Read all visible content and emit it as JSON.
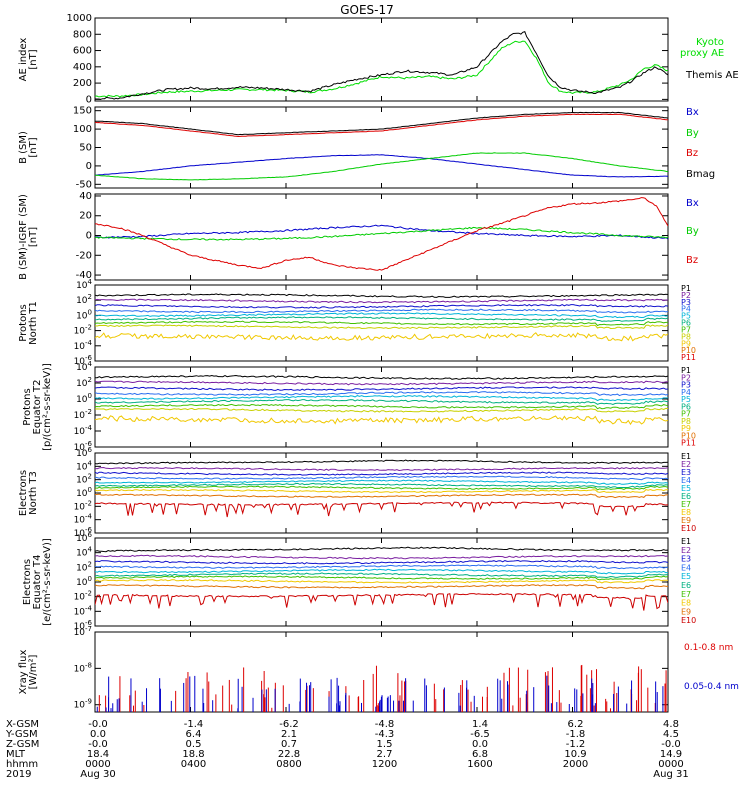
{
  "title": "GOES-17",
  "time_axis": {
    "x_range_hours": [
      0,
      24
    ],
    "tick_hours": [
      0,
      4,
      8,
      12,
      16,
      20,
      24
    ],
    "rows": [
      {
        "label": "X-GSM",
        "values": [
          "-0.0",
          "-1.4",
          "-6.2",
          "-4.8",
          "1.4",
          "6.2",
          "4.8"
        ]
      },
      {
        "label": "Y-GSM",
        "values": [
          "0.0",
          "6.4",
          "2.1",
          "-4.3",
          "-6.5",
          "-1.8",
          "4.5"
        ]
      },
      {
        "label": "Z-GSM",
        "values": [
          "-0.0",
          "0.5",
          "0.7",
          "1.5",
          "0.0",
          "-1.2",
          "-0.0"
        ]
      },
      {
        "label": "MLT",
        "values": [
          "18.4",
          "18.8",
          "22.8",
          "2.7",
          "6.8",
          "10.9",
          "14.9"
        ]
      },
      {
        "label": "hhmm",
        "values": [
          "0000",
          "0400",
          "0800",
          "1200",
          "1600",
          "2000",
          "0000"
        ]
      },
      {
        "label": "2019",
        "values": [
          "Aug 30",
          "",
          "",
          "",
          "",
          "",
          "Aug 31"
        ]
      }
    ]
  },
  "colors": {
    "black": "#000000",
    "red": "#dd0000",
    "green": "#00cc00",
    "blue": "#0000cc",
    "ae_proxy": "#00dd00"
  },
  "chart_data": [
    {
      "type": "line",
      "panel": "ae",
      "ylabel": "AE index\n[nT]",
      "ylim": [
        -20,
        1000
      ],
      "yticks": [
        0,
        200,
        400,
        600,
        800,
        1000
      ],
      "series": [
        {
          "name": "Kyoto\nproxy AE",
          "color": "#00dd00",
          "x": [
            0,
            1,
            2,
            3,
            4,
            5,
            6,
            7,
            8,
            9,
            10,
            11,
            12,
            13,
            14,
            15,
            16,
            17,
            17.5,
            18,
            18.5,
            19,
            19.5,
            20,
            21,
            22,
            22.5,
            23,
            23.5,
            24
          ],
          "values": [
            40,
            40,
            60,
            90,
            100,
            110,
            120,
            120,
            110,
            90,
            130,
            200,
            280,
            260,
            280,
            250,
            300,
            620,
            700,
            720,
            500,
            200,
            100,
            80,
            90,
            180,
            250,
            380,
            420,
            350
          ]
        },
        {
          "name": "Themis AE",
          "color": "#000000",
          "x": [
            0,
            1,
            2,
            3,
            4,
            5,
            6,
            7,
            8,
            9,
            10,
            11,
            12,
            13,
            14,
            15,
            16,
            17,
            17.5,
            18,
            18.5,
            19,
            19.5,
            20,
            21,
            22,
            22.5,
            23,
            23.5,
            24
          ],
          "values": [
            10,
            15,
            70,
            120,
            140,
            130,
            150,
            140,
            120,
            100,
            180,
            250,
            300,
            350,
            330,
            300,
            400,
            700,
            800,
            820,
            560,
            280,
            150,
            110,
            80,
            150,
            230,
            330,
            400,
            300
          ]
        }
      ]
    },
    {
      "type": "line",
      "panel": "b_sm",
      "ylabel": "B (SM)\n[nT]",
      "ylim": [
        -60,
        160
      ],
      "yticks": [
        -50,
        0,
        50,
        100,
        150
      ],
      "series": [
        {
          "name": "Bx",
          "color": "#0000cc",
          "x": [
            0,
            2,
            4,
            6,
            8,
            10,
            12,
            14,
            16,
            18,
            20,
            22,
            24
          ],
          "values": [
            -25,
            -15,
            0,
            10,
            20,
            28,
            30,
            20,
            5,
            -10,
            -25,
            -30,
            -28
          ]
        },
        {
          "name": "By",
          "color": "#00cc00",
          "x": [
            0,
            2,
            4,
            6,
            8,
            10,
            12,
            14,
            16,
            18,
            20,
            22,
            24
          ],
          "values": [
            -25,
            -35,
            -38,
            -35,
            -30,
            -15,
            5,
            20,
            35,
            35,
            20,
            0,
            -15
          ]
        },
        {
          "name": "Bz",
          "color": "#dd0000",
          "x": [
            0,
            2,
            4,
            6,
            8,
            10,
            12,
            14,
            16,
            18,
            20,
            22,
            24
          ],
          "values": [
            118,
            110,
            95,
            80,
            85,
            90,
            95,
            110,
            125,
            135,
            140,
            140,
            125
          ]
        },
        {
          "name": "Bmag",
          "color": "#000000",
          "x": [
            0,
            2,
            4,
            6,
            8,
            10,
            12,
            14,
            16,
            18,
            20,
            22,
            24
          ],
          "values": [
            122,
            115,
            100,
            85,
            90,
            95,
            100,
            115,
            130,
            140,
            145,
            145,
            130
          ]
        }
      ]
    },
    {
      "type": "line",
      "panel": "b_igrf",
      "ylabel": "B (SM)-IGRF (SM)\n[nT]",
      "ylim": [
        -45,
        42
      ],
      "yticks": [
        -40,
        -20,
        0,
        20,
        40
      ],
      "series": [
        {
          "name": "Bx",
          "color": "#0000cc",
          "x": [
            0,
            2,
            4,
            6,
            8,
            10,
            12,
            14,
            16,
            18,
            20,
            22,
            24
          ],
          "values": [
            -2,
            -1,
            2,
            3,
            5,
            8,
            10,
            5,
            2,
            0,
            -1,
            0,
            -3
          ]
        },
        {
          "name": "By",
          "color": "#00cc00",
          "x": [
            0,
            2,
            4,
            6,
            8,
            10,
            12,
            14,
            16,
            18,
            20,
            22,
            24
          ],
          "values": [
            -2,
            -3,
            -4,
            -4,
            -3,
            -1,
            2,
            5,
            8,
            6,
            3,
            0,
            -2
          ]
        },
        {
          "name": "Bz",
          "color": "#dd0000",
          "x": [
            0,
            1,
            2,
            3,
            4,
            5,
            6,
            7,
            8,
            9,
            10,
            11,
            12,
            13,
            14,
            15,
            16,
            17,
            18,
            19,
            20,
            21,
            22,
            23,
            23.5,
            24
          ],
          "values": [
            12,
            8,
            0,
            -10,
            -20,
            -25,
            -30,
            -33,
            -25,
            -22,
            -30,
            -33,
            -35,
            -25,
            -15,
            -5,
            5,
            12,
            20,
            28,
            32,
            33,
            35,
            38,
            30,
            10
          ]
        }
      ]
    },
    {
      "type": "line",
      "panel": "protons_t1",
      "ylabel": "Protons\nNorth T1",
      "log_y": true,
      "ylim_log10": [
        -6,
        4
      ],
      "yticks_log10": [
        -6,
        -4,
        -2,
        0,
        2,
        4
      ],
      "series": [
        {
          "name": "P1",
          "color": "#000000",
          "level_log10": 2.6
        },
        {
          "name": "P2",
          "color": "#7a1fa0",
          "level_log10": 1.9
        },
        {
          "name": "P3",
          "color": "#1010cc",
          "level_log10": 1.2
        },
        {
          "name": "P4",
          "color": "#2a6ef0",
          "level_log10": 0.6
        },
        {
          "name": "P5",
          "color": "#00b4d8",
          "level_log10": 0.1
        },
        {
          "name": "P6",
          "color": "#00b080",
          "level_log10": -0.4
        },
        {
          "name": "P7",
          "color": "#40c000",
          "level_log10": -1.0
        },
        {
          "name": "P8",
          "color": "#c8d000",
          "level_log10": -1.5
        },
        {
          "name": "P9",
          "color": "#f0c800",
          "level_log10": -2.8
        },
        {
          "name": "P10",
          "color": "#e07000",
          "level_log10": null
        },
        {
          "name": "P11",
          "color": "#dd0000",
          "level_log10": null
        }
      ]
    },
    {
      "type": "line",
      "panel": "protons_t2",
      "ylabel": "Protons\nEquator T2\n[p/(cm²-s-sr-keV)]",
      "log_y": true,
      "ylim_log10": [
        -6,
        4
      ],
      "yticks_log10": [
        -6,
        -4,
        -2,
        0,
        2,
        4
      ],
      "series": [
        {
          "name": "P1",
          "color": "#000000",
          "level_log10": 2.7
        },
        {
          "name": "P2",
          "color": "#7a1fa0",
          "level_log10": 2.0
        },
        {
          "name": "P3",
          "color": "#1010cc",
          "level_log10": 1.3
        },
        {
          "name": "P4",
          "color": "#2a6ef0",
          "level_log10": 0.7
        },
        {
          "name": "P5",
          "color": "#00b4d8",
          "level_log10": 0.2
        },
        {
          "name": "P6",
          "color": "#00b080",
          "level_log10": -0.3
        },
        {
          "name": "P7",
          "color": "#40c000",
          "level_log10": -0.9
        },
        {
          "name": "P8",
          "color": "#c8d000",
          "level_log10": -1.4
        },
        {
          "name": "P9",
          "color": "#f0c800",
          "level_log10": -2.6
        },
        {
          "name": "P10",
          "color": "#e07000",
          "level_log10": null
        },
        {
          "name": "P11",
          "color": "#dd0000",
          "level_log10": null
        }
      ]
    },
    {
      "type": "line",
      "panel": "electrons_t3",
      "ylabel": "Electrons\nNorth T3",
      "log_y": true,
      "ylim_log10": [
        -6,
        6
      ],
      "yticks_log10": [
        -6,
        -4,
        -2,
        0,
        2,
        4,
        6
      ],
      "series": [
        {
          "name": "E1",
          "color": "#000000",
          "level_log10": 4.4
        },
        {
          "name": "E2",
          "color": "#7a1fa0",
          "level_log10": 3.6
        },
        {
          "name": "E3",
          "color": "#1010cc",
          "level_log10": 2.9
        },
        {
          "name": "E4",
          "color": "#2a6ef0",
          "level_log10": 2.3
        },
        {
          "name": "E5",
          "color": "#00b4d8",
          "level_log10": 1.7
        },
        {
          "name": "E6",
          "color": "#00b080",
          "level_log10": 1.2
        },
        {
          "name": "E7",
          "color": "#40c000",
          "level_log10": 0.8
        },
        {
          "name": "E8",
          "color": "#f0c800",
          "level_log10": 0.3
        },
        {
          "name": "E9",
          "color": "#e07000",
          "level_log10": -0.4
        },
        {
          "name": "E10",
          "color": "#cc0000",
          "level_log10": -1.6
        }
      ]
    },
    {
      "type": "line",
      "panel": "electrons_t4",
      "ylabel": "Electrons\nEquator T4\n[e/(cm²-s-sr-keV)]",
      "log_y": true,
      "ylim_log10": [
        -6,
        6
      ],
      "yticks_log10": [
        -6,
        -4,
        -2,
        0,
        2,
        4,
        6
      ],
      "series": [
        {
          "name": "E1",
          "color": "#000000",
          "level_log10": 4.2
        },
        {
          "name": "E2",
          "color": "#7a1fa0",
          "level_log10": 3.4
        },
        {
          "name": "E3",
          "color": "#1010cc",
          "level_log10": 2.7
        },
        {
          "name": "E4",
          "color": "#2a6ef0",
          "level_log10": 2.1
        },
        {
          "name": "E5",
          "color": "#00b4d8",
          "level_log10": 1.5
        },
        {
          "name": "E6",
          "color": "#00b080",
          "level_log10": 1.0
        },
        {
          "name": "E7",
          "color": "#40c000",
          "level_log10": 0.6
        },
        {
          "name": "E8",
          "color": "#f0c800",
          "level_log10": 0.1
        },
        {
          "name": "E9",
          "color": "#e07000",
          "level_log10": -0.6
        },
        {
          "name": "E10",
          "color": "#cc0000",
          "level_log10": -1.8
        }
      ]
    },
    {
      "type": "line",
      "panel": "xray",
      "ylabel": "Xray flux\n[W/m²]",
      "log_y": true,
      "ylim_log10": [
        -9.2,
        -7
      ],
      "yticks_log10": [
        -9,
        -8,
        -7
      ],
      "series": [
        {
          "name": "0.1-0.8 nm",
          "color": "#dd0000"
        },
        {
          "name": "0.05-0.4 nm",
          "color": "#0000cc"
        }
      ]
    }
  ]
}
